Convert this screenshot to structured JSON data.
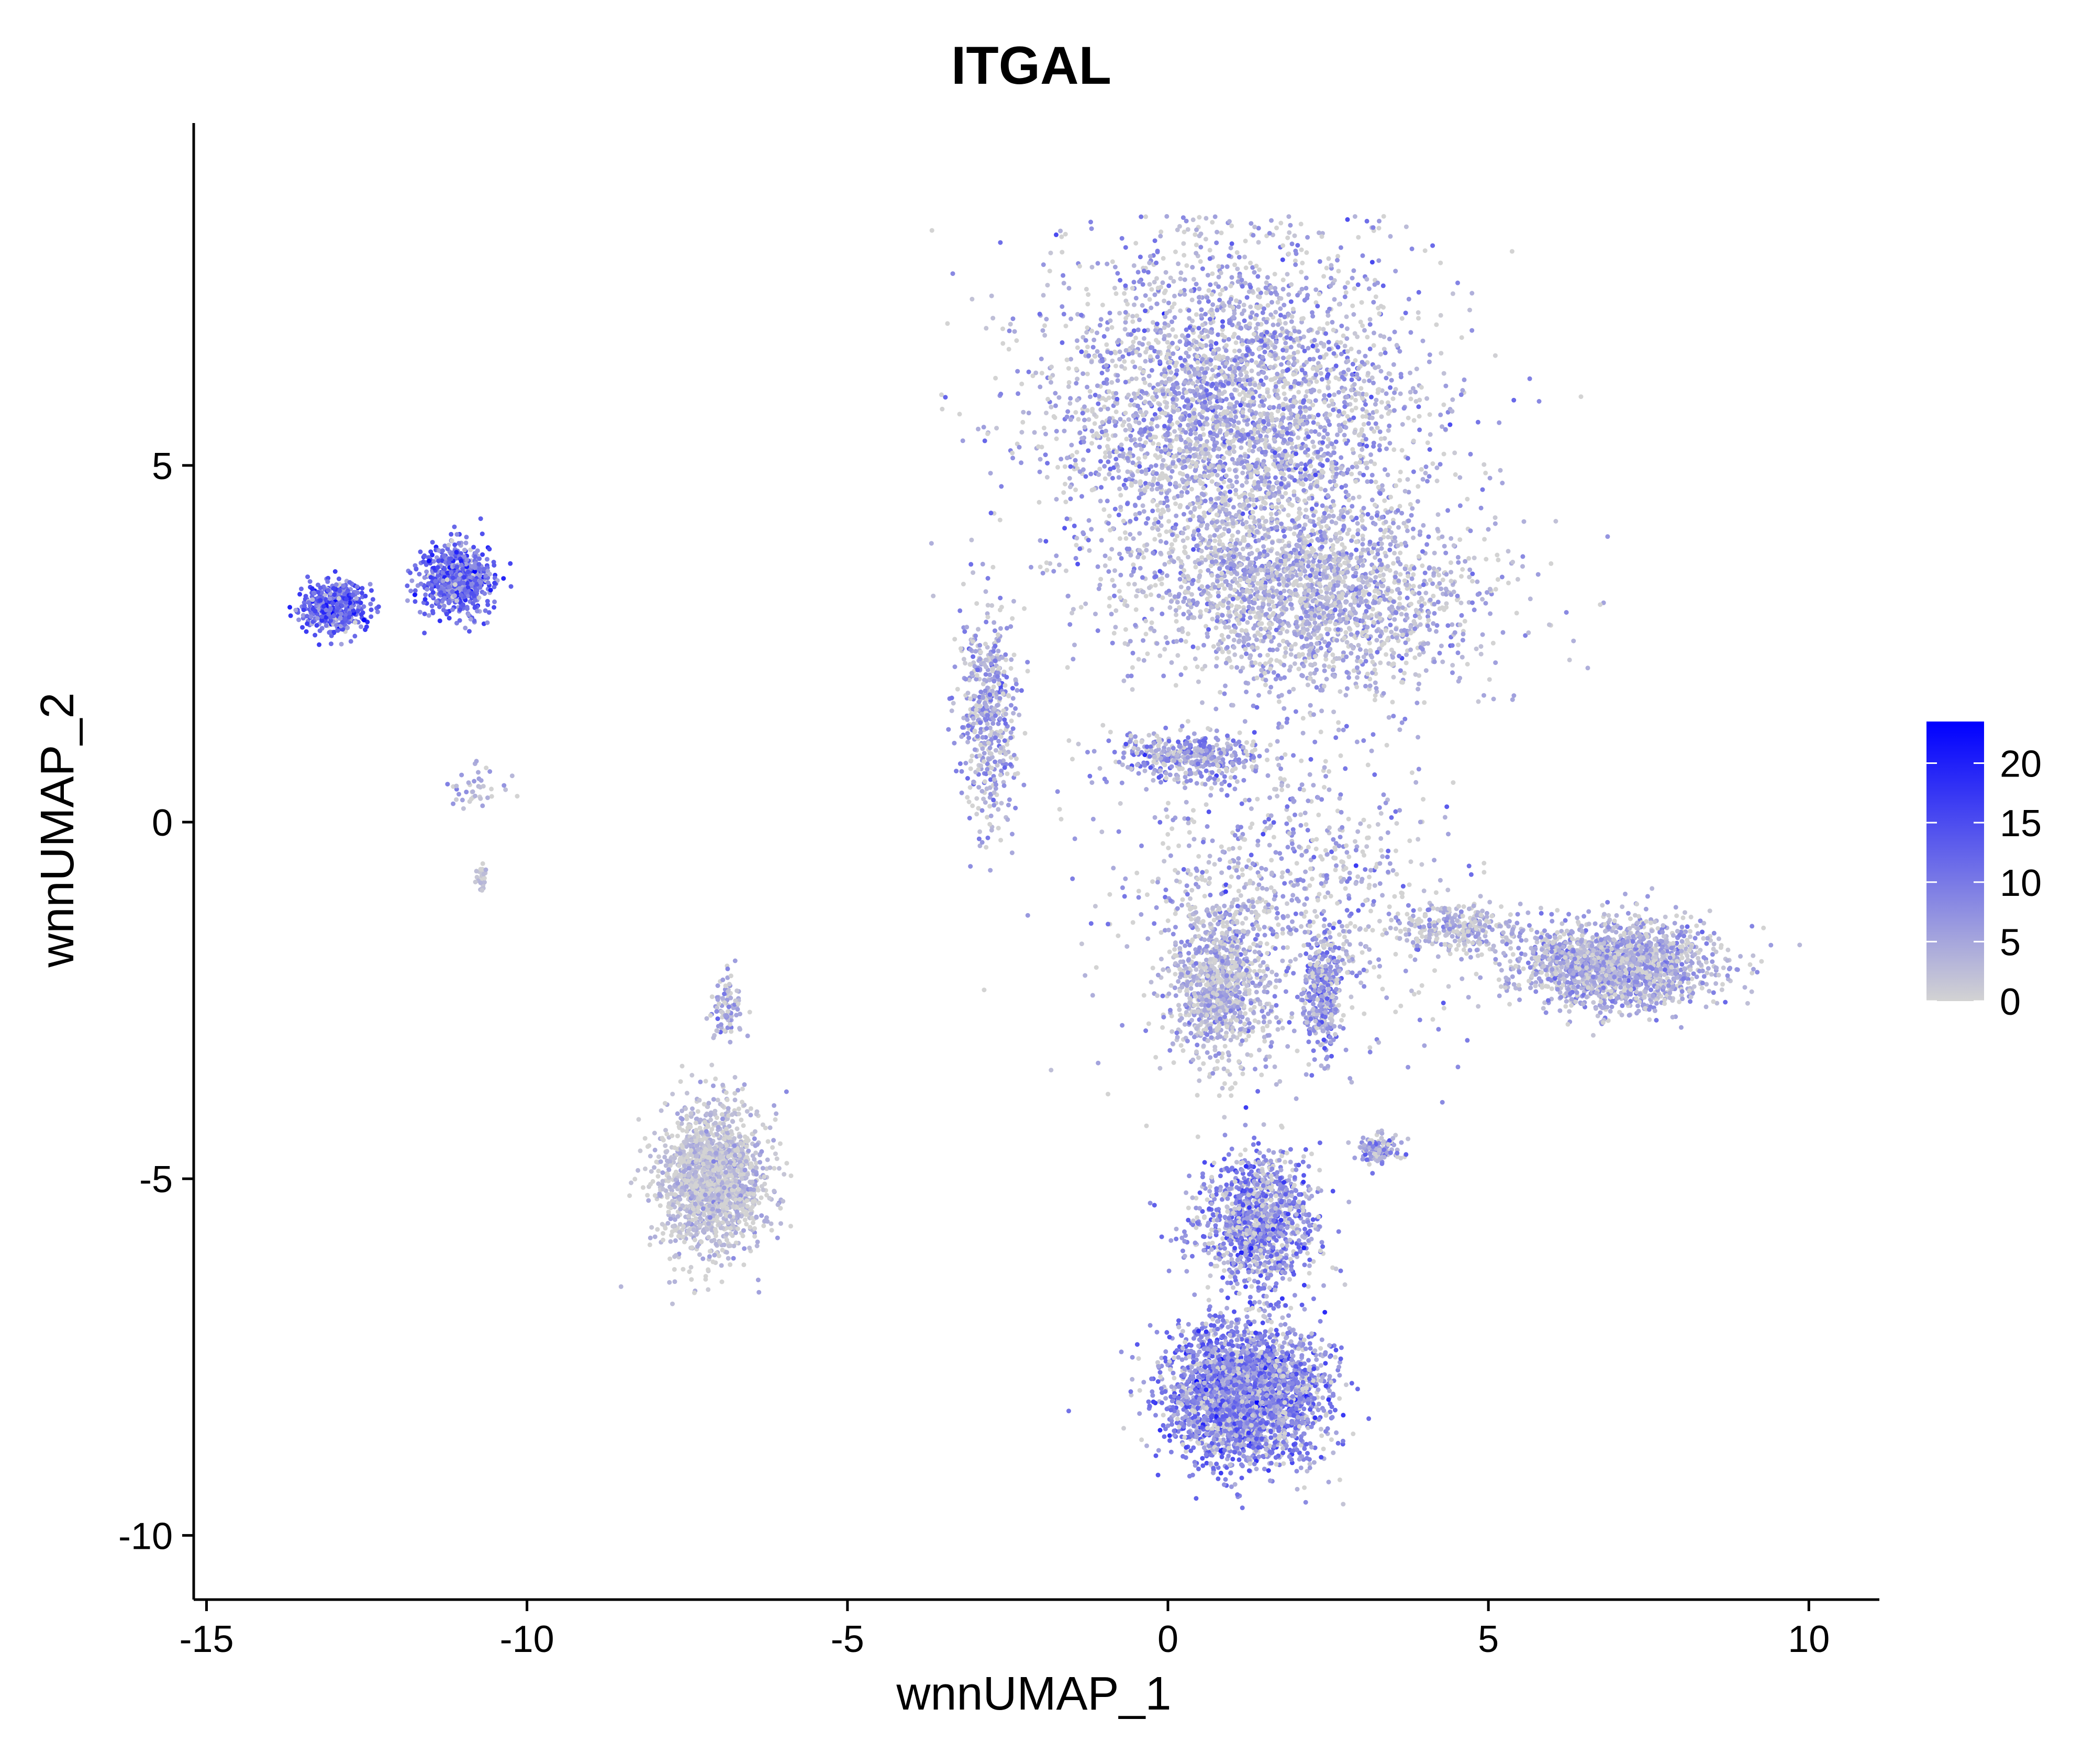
{
  "chart_data": {
    "type": "scatter",
    "title": "ITGAL",
    "xlabel": "wnnUMAP_1",
    "ylabel": "wnnUMAP_2",
    "xlim": [
      -15.2,
      11.1
    ],
    "ylim": [
      -10.9,
      9.8
    ],
    "x_ticks": [
      -15,
      -10,
      -5,
      0,
      5,
      10
    ],
    "x_tick_labels": [
      "-15",
      "-10",
      "-5",
      "0",
      "5",
      "10"
    ],
    "y_ticks": [
      -10,
      -5,
      0,
      5
    ],
    "y_tick_labels": [
      "-10",
      "-5",
      "0",
      "5"
    ],
    "grid": false,
    "legend": {
      "placement": "right",
      "type": "colorbar",
      "min": 0,
      "max": 23.5,
      "ticks": [
        0,
        5,
        10,
        15,
        20
      ],
      "tick_labels": [
        "0",
        "5",
        "10",
        "15",
        "20"
      ],
      "low_color": "#d3d3d3",
      "high_color": "#0000ff"
    },
    "clusters": [
      {
        "name": "top-large",
        "cx": 1.0,
        "cy": 5.7,
        "sx": 2.9,
        "sy": 2.4,
        "n": 3600,
        "expr_mean": 2.5,
        "expr_spread": 4,
        "cap_y_max": 8.5
      },
      {
        "name": "top-left-lobe",
        "cx": 2.3,
        "cy": 3.2,
        "sx": 2.6,
        "sy": 1.3,
        "n": 2000,
        "expr_mean": 2,
        "expr_spread": 3
      },
      {
        "name": "left-arm",
        "cx": -2.8,
        "cy": 1.5,
        "sx": 0.45,
        "sy": 1.5,
        "n": 500,
        "expr_mean": 3,
        "expr_spread": 4
      },
      {
        "name": "mid-band",
        "cx": 0.2,
        "cy": 0.9,
        "sx": 1.2,
        "sy": 0.35,
        "n": 400,
        "expr_mean": 3.5,
        "expr_spread": 4
      },
      {
        "name": "far-left-1",
        "cx": -13.0,
        "cy": 3.0,
        "sx": 0.5,
        "sy": 0.35,
        "n": 500,
        "expr_mean": 10,
        "expr_spread": 5
      },
      {
        "name": "far-left-2",
        "cx": -11.1,
        "cy": 3.4,
        "sx": 0.55,
        "sy": 0.5,
        "n": 650,
        "expr_mean": 9,
        "expr_spread": 5
      },
      {
        "name": "far-left-stream",
        "cx": -10.8,
        "cy": 0.5,
        "sx": 0.5,
        "sy": 0.35,
        "n": 40,
        "expr_mean": 2,
        "expr_spread": 3
      },
      {
        "name": "far-left-dots",
        "cx": -10.7,
        "cy": -0.8,
        "sx": 0.1,
        "sy": 0.2,
        "n": 25,
        "expr_mean": 0.5,
        "expr_spread": 1
      },
      {
        "name": "lower-left",
        "cx": -7.1,
        "cy": -5.0,
        "sx": 0.85,
        "sy": 1.0,
        "n": 1600,
        "expr_mean": 1,
        "expr_spread": 2
      },
      {
        "name": "lower-left-tail",
        "cx": -6.9,
        "cy": -2.6,
        "sx": 0.25,
        "sy": 0.55,
        "n": 90,
        "expr_mean": 2,
        "expr_spread": 3
      },
      {
        "name": "right-arm",
        "cx": 7.0,
        "cy": -2.0,
        "sx": 1.5,
        "sy": 0.6,
        "n": 1800,
        "expr_mean": 2.5,
        "expr_spread": 3
      },
      {
        "name": "right-arm-neck",
        "cx": 4.5,
        "cy": -1.5,
        "sx": 1.0,
        "sy": 0.35,
        "n": 300,
        "expr_mean": 1.5,
        "expr_spread": 3
      },
      {
        "name": "center-stem",
        "cx": 0.8,
        "cy": -2.3,
        "sx": 0.75,
        "sy": 1.1,
        "n": 900,
        "expr_mean": 1.5,
        "expr_spread": 3
      },
      {
        "name": "center-right-strip",
        "cx": 2.4,
        "cy": -2.4,
        "sx": 0.3,
        "sy": 0.9,
        "n": 350,
        "expr_mean": 5,
        "expr_spread": 4
      },
      {
        "name": "small-right-blob",
        "cx": 3.3,
        "cy": -4.6,
        "sx": 0.35,
        "sy": 0.2,
        "n": 120,
        "expr_mean": 4,
        "expr_spread": 4
      },
      {
        "name": "bottom-cluster",
        "cx": 1.2,
        "cy": -8.0,
        "sx": 1.2,
        "sy": 0.95,
        "n": 3000,
        "expr_mean": 6,
        "expr_spread": 5
      },
      {
        "name": "bottom-upper",
        "cx": 1.4,
        "cy": -5.6,
        "sx": 0.9,
        "sy": 0.9,
        "n": 1200,
        "expr_mean": 5,
        "expr_spread": 5
      },
      {
        "name": "scatter-sparse",
        "cx": 1.8,
        "cy": -1.0,
        "sx": 2.5,
        "sy": 2.2,
        "n": 900,
        "expr_mean": 2,
        "expr_spread": 4
      }
    ]
  }
}
